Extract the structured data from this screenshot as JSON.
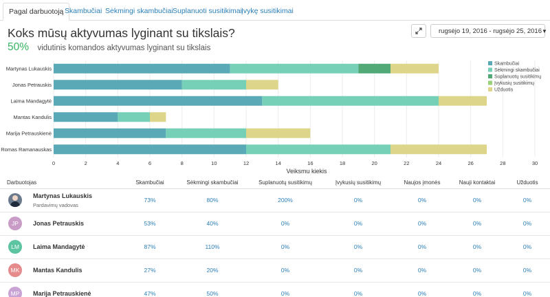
{
  "tabs": [
    {
      "label": "Pagal darbuotoją",
      "active": true
    },
    {
      "label": "Skambučiai",
      "active": false
    },
    {
      "label": "Sėkmingi skambučiai",
      "active": false
    },
    {
      "label": "Suplanuoti susitikimai",
      "active": false
    },
    {
      "label": "Įvykę susitikimai",
      "active": false
    }
  ],
  "header": {
    "title": "Koks mūsų aktyvumas lyginant su tikslais?",
    "percent": "50%",
    "subtitle": "vidutinis komandos aktyvumas lyginant su tikslais",
    "date_range": "rugsėjo 19, 2016 - rugsėjo 25, 2016",
    "expand_icon": "expand-icon",
    "calendar_icon": "calendar-icon"
  },
  "chart_data": {
    "type": "bar",
    "orientation": "horizontal",
    "stacked": true,
    "categories": [
      "Martynas Lukauskis",
      "Jonas Petrauskis",
      "Laima Mandagytė",
      "Mantas Kandulis",
      "Marija Petrauskienė",
      "Romas Ramanauskas"
    ],
    "series": [
      {
        "name": "Skambučiai",
        "color": "#5aa9b6",
        "values": [
          11,
          8,
          13,
          4,
          7,
          12
        ]
      },
      {
        "name": "Sėkmingi skambučiai",
        "color": "#76d0b8",
        "values": [
          8,
          4,
          11,
          2,
          5,
          9
        ]
      },
      {
        "name": "Suplanuotų susitikimų",
        "color": "#52a978",
        "values": [
          2,
          0,
          0,
          0,
          0,
          0
        ]
      },
      {
        "name": "Įvykusių susitikimų",
        "color": "#9bd07a",
        "values": [
          0,
          0,
          0,
          0,
          0,
          0
        ]
      },
      {
        "name": "Užduotis",
        "color": "#ddd68a",
        "values": [
          3,
          2,
          3,
          1,
          4,
          6
        ]
      }
    ],
    "xlabel": "Veiksmų kiekis",
    "xlim": [
      0,
      30
    ],
    "xticks": [
      0,
      2,
      4,
      6,
      8,
      10,
      12,
      14,
      16,
      18,
      20,
      22,
      24,
      26,
      28,
      30
    ],
    "grid": true,
    "legend": "top-right"
  },
  "table": {
    "columns": [
      "Darbuotojas",
      "Skambučiai",
      "Sėkmingi skambučiai",
      "Suplanuotų susitikimų",
      "Įvykusių susitikimų",
      "Naujos įmonės",
      "Nauji kontaktai",
      "Užduotis"
    ],
    "rows": [
      {
        "name": "Martynas Lukauskis",
        "role": "Pardavimų vadovas",
        "initials": "",
        "avatar_color": "#6b7a8c",
        "photo": true,
        "cells": [
          "73%",
          "80%",
          "200%",
          "0%",
          "0%",
          "0%",
          "0%"
        ]
      },
      {
        "name": "Jonas Petrauskis",
        "role": "",
        "initials": "JP",
        "avatar_color": "#c99bc7",
        "photo": false,
        "cells": [
          "53%",
          "40%",
          "0%",
          "0%",
          "0%",
          "0%",
          "0%"
        ]
      },
      {
        "name": "Laima Mandagytė",
        "role": "",
        "initials": "LM",
        "avatar_color": "#5cc4a1",
        "photo": false,
        "cells": [
          "87%",
          "110%",
          "0%",
          "0%",
          "0%",
          "0%",
          "0%"
        ]
      },
      {
        "name": "Mantas Kandulis",
        "role": "",
        "initials": "MK",
        "avatar_color": "#e58b8b",
        "photo": false,
        "cells": [
          "27%",
          "20%",
          "0%",
          "0%",
          "0%",
          "0%",
          "0%"
        ]
      },
      {
        "name": "Marija Petrauskienė",
        "role": "",
        "initials": "MP",
        "avatar_color": "#c9a3d6",
        "photo": false,
        "cells": [
          "47%",
          "50%",
          "0%",
          "0%",
          "0%",
          "0%",
          "0%"
        ]
      }
    ]
  }
}
